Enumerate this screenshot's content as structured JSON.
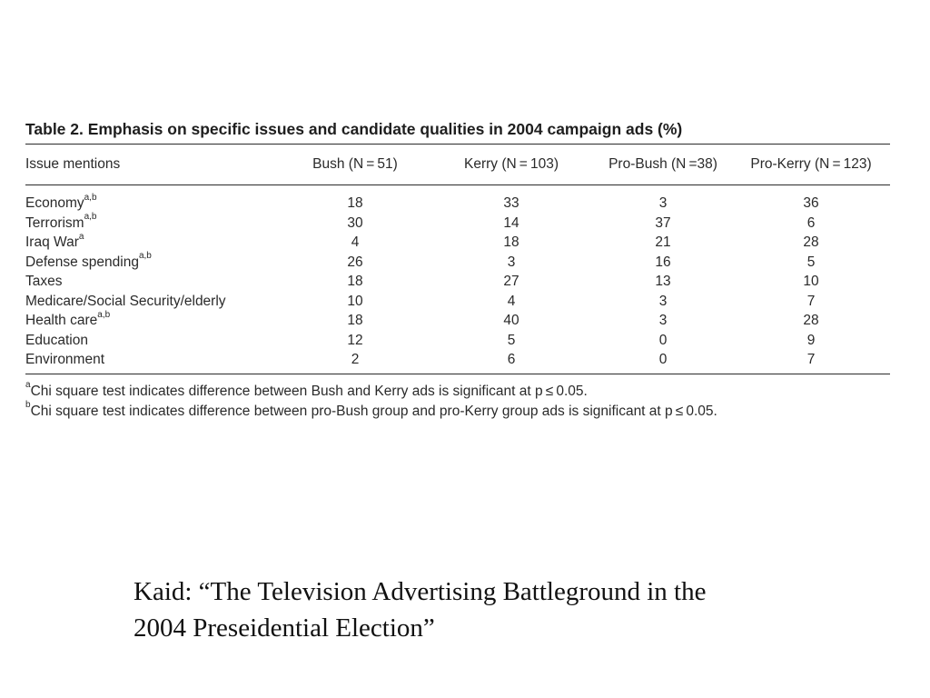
{
  "table": {
    "title": "Table 2.  Emphasis on specific issues and candidate qualities in 2004 campaign ads (%)",
    "columns": [
      {
        "label": "Issue mentions"
      },
      {
        "label": "Bush (N = 51)"
      },
      {
        "label": "Kerry (N = 103)"
      },
      {
        "label": "Pro-Bush (N =38)"
      },
      {
        "label": "Pro-Kerry (N = 123)"
      }
    ],
    "rows": [
      {
        "issue": "Economy",
        "sup": "a,b",
        "bush": "18",
        "kerry": "33",
        "pro_bush": "3",
        "pro_kerry": "36"
      },
      {
        "issue": "Terrorism",
        "sup": "a,b",
        "bush": "30",
        "kerry": "14",
        "pro_bush": "37",
        "pro_kerry": "6"
      },
      {
        "issue": "Iraq War",
        "sup": "a",
        "bush": "4",
        "kerry": "18",
        "pro_bush": "21",
        "pro_kerry": "28"
      },
      {
        "issue": "Defense spending",
        "sup": "a,b",
        "bush": "26",
        "kerry": "3",
        "pro_bush": "16",
        "pro_kerry": "5"
      },
      {
        "issue": "Taxes",
        "sup": "",
        "bush": "18",
        "kerry": "27",
        "pro_bush": "13",
        "pro_kerry": "10"
      },
      {
        "issue": "Medicare/Social Security/elderly",
        "sup": "",
        "bush": "10",
        "kerry": "4",
        "pro_bush": "3",
        "pro_kerry": "7"
      },
      {
        "issue": "Health care",
        "sup": "a,b",
        "bush": "18",
        "kerry": "40",
        "pro_bush": "3",
        "pro_kerry": "28"
      },
      {
        "issue": "Education",
        "sup": "",
        "bush": "12",
        "kerry": "5",
        "pro_bush": "0",
        "pro_kerry": "9"
      },
      {
        "issue": "Environment",
        "sup": "",
        "bush": "2",
        "kerry": "6",
        "pro_bush": "0",
        "pro_kerry": "7"
      }
    ],
    "footnotes": [
      {
        "marker": "a",
        "text": "Chi square test indicates difference between Bush and Kerry ads is significant at p ≤ 0.05."
      },
      {
        "marker": "b",
        "text": "Chi square test indicates difference between pro-Bush group and pro-Kerry group ads is significant at p ≤ 0.05."
      }
    ]
  },
  "citation": {
    "line1": "Kaid: “The Television Advertising Battleground in the",
    "line2": "2004 Preseidential Election”"
  }
}
